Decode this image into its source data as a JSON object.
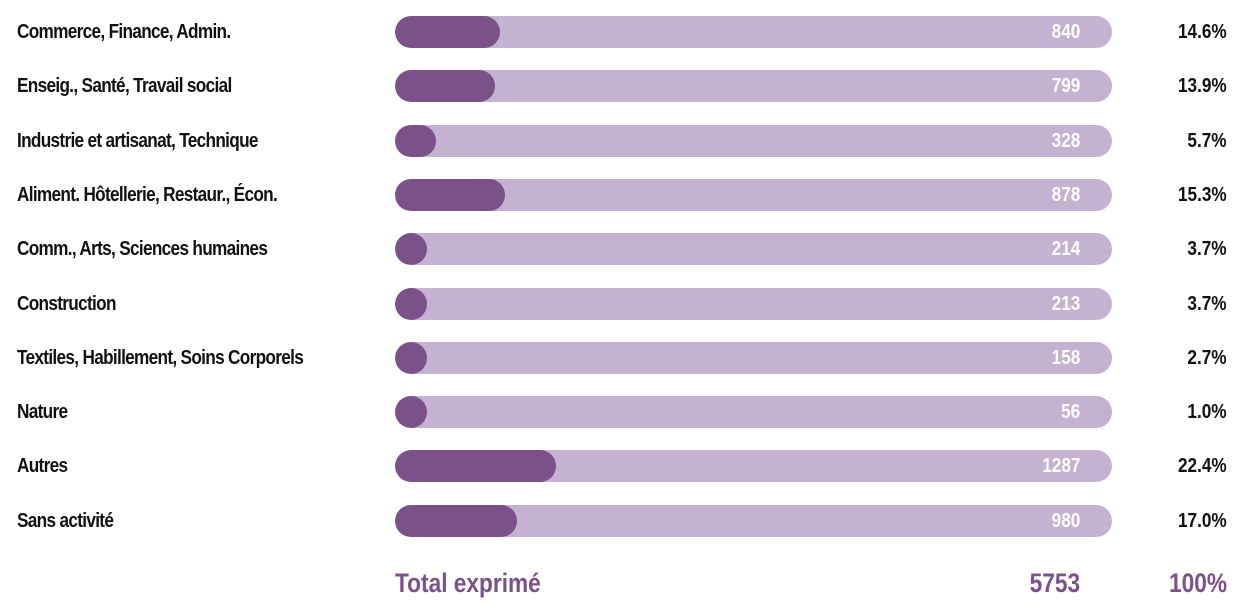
{
  "colors": {
    "bar_fill": "#7a5188",
    "bar_track": "#c3b2d0",
    "label_text": "#111111",
    "value_text": "#ffffff",
    "total_text": "#7a5188"
  },
  "chart_data": {
    "type": "bar",
    "orientation": "horizontal",
    "categories": [
      "Commerce, Finance, Admin.",
      "Enseig., Santé, Travail social",
      "Industrie et artisanat, Technique",
      "Aliment. Hôtellerie, Restaur., Écon.",
      "Comm., Arts, Sciences humaines",
      "Construction",
      "Textiles, Habillement, Soins Corporels",
      "Nature",
      "Autres",
      "Sans activité"
    ],
    "values": [
      840,
      799,
      328,
      878,
      214,
      213,
      158,
      56,
      1287,
      980
    ],
    "percentages": [
      "14.6%",
      "13.9%",
      "5.7%",
      "15.3%",
      "3.7%",
      "3.7%",
      "2.7%",
      "1.0%",
      "22.4%",
      "17.0%"
    ],
    "percent_values": [
      14.6,
      13.9,
      5.7,
      15.3,
      3.7,
      3.7,
      2.7,
      1.0,
      22.4,
      17.0
    ],
    "total": {
      "label": "Total exprimé",
      "value": "5753",
      "percent": "100%"
    },
    "title": "",
    "xlabel": "",
    "ylabel": "",
    "grid": false,
    "legend": "none"
  }
}
